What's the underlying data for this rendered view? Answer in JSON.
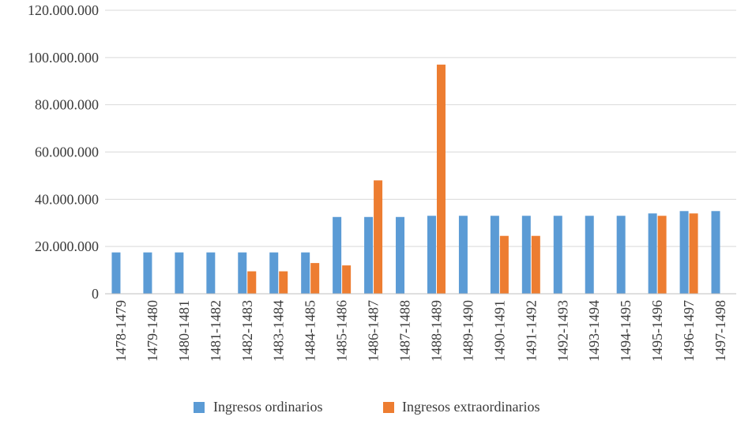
{
  "chart_data": {
    "type": "bar",
    "title": "",
    "xlabel": "",
    "ylabel": "",
    "ylim": [
      0,
      120000000
    ],
    "yticks": [
      0,
      20000000,
      40000000,
      60000000,
      80000000,
      100000000,
      120000000
    ],
    "ytick_labels": [
      "0",
      "20.000.000",
      "40.000.000",
      "60.000.000",
      "80.000.000",
      "100.000.000",
      "120.000.000"
    ],
    "grid": true,
    "legend_position": "bottom",
    "categories": [
      "1478-1479",
      "1479-1480",
      "1480-1481",
      "1481-1482",
      "1482-1483",
      "1483-1484",
      "1484-1485",
      "1485-1486",
      "1486-1487",
      "1487-1488",
      "1488-1489",
      "1489-1490",
      "1490-1491",
      "1491-1492",
      "1492-1493",
      "1493-1494",
      "1494-1495",
      "1495-1496",
      "1496-1497",
      "1497-1498"
    ],
    "series": [
      {
        "name": "Ingresos ordinarios",
        "color": "#5b9bd5",
        "values": [
          17500000,
          17500000,
          17500000,
          17500000,
          17500000,
          17500000,
          17500000,
          32500000,
          32500000,
          32500000,
          33000000,
          33000000,
          33000000,
          33000000,
          33000000,
          33000000,
          33000000,
          34000000,
          35000000,
          35000000
        ]
      },
      {
        "name": "Ingresos extraordinarios",
        "color": "#ed7d31",
        "values": [
          0,
          0,
          0,
          0,
          9500000,
          9500000,
          13000000,
          12000000,
          48000000,
          0,
          97000000,
          0,
          24500000,
          24500000,
          0,
          0,
          0,
          33000000,
          34000000,
          0
        ]
      }
    ]
  }
}
